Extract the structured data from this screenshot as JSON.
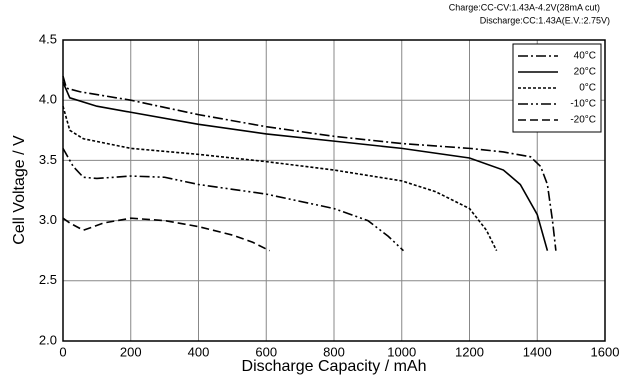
{
  "chart_data": {
    "type": "line",
    "annotations": [
      "Charge:CC-CV:1.43A-4.2V(28mA cut)",
      "Discharge:CC:1.43A(E.V.:2.75V)"
    ],
    "x_label": "Discharge Capacity  /  mAh",
    "y_label": "Cell Voltage  /  V",
    "color": "#000000",
    "grid": true,
    "legend": "top-right",
    "xlim": [
      0,
      1600
    ],
    "xticks": [
      0,
      200,
      400,
      600,
      800,
      1000,
      1200,
      1400,
      1600
    ],
    "ylim": [
      2,
      4.5
    ],
    "yticks": [
      {
        "value": 2,
        "label": "2.0"
      },
      2.5,
      {
        "value": 3,
        "label": "3.0"
      },
      3.5,
      {
        "value": 4,
        "label": "4.0"
      },
      4.5
    ],
    "series": [
      {
        "name": "40°C",
        "style": "dash-dot",
        "x": [
          0,
          10,
          50,
          200,
          400,
          600,
          800,
          1000,
          1200,
          1300,
          1380,
          1410,
          1430,
          1445,
          1455
        ],
        "values": [
          4.2,
          4.1,
          4.07,
          4.0,
          3.88,
          3.78,
          3.7,
          3.64,
          3.6,
          3.57,
          3.53,
          3.45,
          3.3,
          3.0,
          2.75
        ]
      },
      {
        "name": "20°C",
        "style": "solid",
        "x": [
          0,
          20,
          100,
          200,
          400,
          600,
          800,
          1000,
          1200,
          1300,
          1350,
          1400,
          1430
        ],
        "values": [
          4.15,
          4.02,
          3.95,
          3.9,
          3.8,
          3.72,
          3.66,
          3.6,
          3.52,
          3.42,
          3.3,
          3.05,
          2.75
        ]
      },
      {
        "name": "0°C",
        "style": "dotted",
        "x": [
          0,
          20,
          60,
          200,
          400,
          600,
          800,
          1000,
          1100,
          1200,
          1250,
          1280
        ],
        "values": [
          3.95,
          3.75,
          3.68,
          3.6,
          3.55,
          3.49,
          3.42,
          3.33,
          3.24,
          3.1,
          2.92,
          2.75
        ]
      },
      {
        "name": "-10°C",
        "style": "dash-dot-dot",
        "x": [
          0,
          30,
          60,
          100,
          200,
          300,
          400,
          600,
          800,
          900,
          960,
          1005
        ],
        "values": [
          3.6,
          3.45,
          3.36,
          3.35,
          3.37,
          3.36,
          3.3,
          3.22,
          3.1,
          3.0,
          2.87,
          2.75
        ]
      },
      {
        "name": "-20°C",
        "style": "dashed",
        "x": [
          0,
          20,
          60,
          120,
          200,
          300,
          400,
          500,
          560,
          610
        ],
        "values": [
          3.02,
          2.98,
          2.92,
          2.98,
          3.02,
          3.0,
          2.95,
          2.88,
          2.82,
          2.75
        ]
      }
    ]
  }
}
